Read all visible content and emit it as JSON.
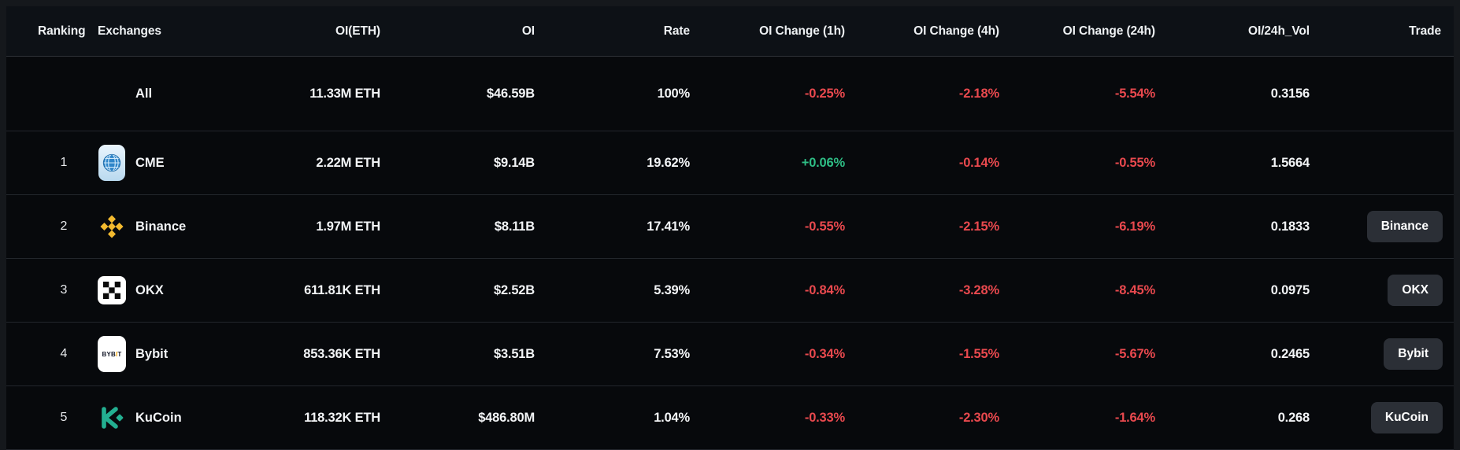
{
  "table": {
    "columns": [
      {
        "key": "ranking",
        "label": "Ranking"
      },
      {
        "key": "exchanges",
        "label": "Exchanges"
      },
      {
        "key": "oi_eth",
        "label": "OI(ETH)"
      },
      {
        "key": "oi",
        "label": "OI"
      },
      {
        "key": "rate",
        "label": "Rate"
      },
      {
        "key": "oi_change_1h",
        "label": "OI Change (1h)"
      },
      {
        "key": "oi_change_4h",
        "label": "OI Change (4h)"
      },
      {
        "key": "oi_change_24h",
        "label": "OI Change (24h)"
      },
      {
        "key": "oi_24h_vol",
        "label": "OI/24h_Vol"
      },
      {
        "key": "trade",
        "label": "Trade"
      }
    ],
    "rows": [
      {
        "rank": "",
        "name": "All",
        "icon": "",
        "oi_eth": "11.33M ETH",
        "oi": "$46.59B",
        "rate": "100%",
        "chg_1h": "-0.25%",
        "chg_4h": "-2.18%",
        "chg_24h": "-5.54%",
        "oi_24h_vol": "0.3156",
        "trade": ""
      },
      {
        "rank": "1",
        "name": "CME",
        "icon": "cme-icon",
        "oi_eth": "2.22M ETH",
        "oi": "$9.14B",
        "rate": "19.62%",
        "chg_1h": "+0.06%",
        "chg_4h": "-0.14%",
        "chg_24h": "-0.55%",
        "oi_24h_vol": "1.5664",
        "trade": ""
      },
      {
        "rank": "2",
        "name": "Binance",
        "icon": "binance-icon",
        "oi_eth": "1.97M ETH",
        "oi": "$8.11B",
        "rate": "17.41%",
        "chg_1h": "-0.55%",
        "chg_4h": "-2.15%",
        "chg_24h": "-6.19%",
        "oi_24h_vol": "0.1833",
        "trade": "Binance"
      },
      {
        "rank": "3",
        "name": "OKX",
        "icon": "okx-icon",
        "oi_eth": "611.81K ETH",
        "oi": "$2.52B",
        "rate": "5.39%",
        "chg_1h": "-0.84%",
        "chg_4h": "-3.28%",
        "chg_24h": "-8.45%",
        "oi_24h_vol": "0.0975",
        "trade": "OKX"
      },
      {
        "rank": "4",
        "name": "Bybit",
        "icon": "bybit-icon",
        "oi_eth": "853.36K ETH",
        "oi": "$3.51B",
        "rate": "7.53%",
        "chg_1h": "-0.34%",
        "chg_4h": "-1.55%",
        "chg_24h": "-5.67%",
        "oi_24h_vol": "0.2465",
        "trade": "Bybit"
      },
      {
        "rank": "5",
        "name": "KuCoin",
        "icon": "kucoin-icon",
        "oi_eth": "118.32K ETH",
        "oi": "$486.80M",
        "rate": "1.04%",
        "chg_1h": "-0.33%",
        "chg_4h": "-2.30%",
        "chg_24h": "-1.64%",
        "oi_24h_vol": "0.268",
        "trade": "KuCoin"
      }
    ]
  },
  "colors": {
    "positive": "#2ebd85",
    "negative": "#e9494e",
    "button_bg": "#2b2f36",
    "binance_yellow": "#f3ba2f",
    "bybit_orange": "#f7a600",
    "kucoin_teal": "#23af91",
    "cme_blue": "#2f86c9"
  }
}
